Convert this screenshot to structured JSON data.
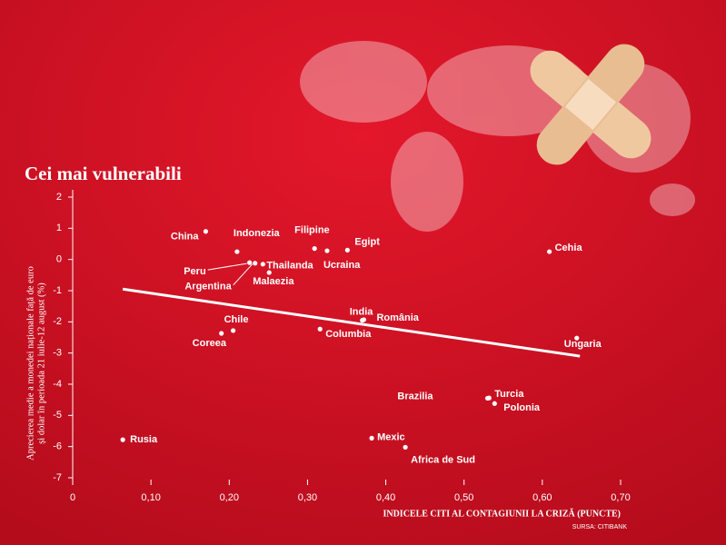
{
  "chart_data": {
    "type": "scatter",
    "title": "Cei mai vulnerabili",
    "y_label_lines": [
      "Aprecierea medie a monedei naționale față de euro",
      "și dolar în perioada 21 iulie-12 august (%)"
    ],
    "x_label": "INDICELE CITI AL CONTAGIUNII LA CRIZĂ (PUNCTE)",
    "source": "SURSA: CITIBANK",
    "points": [
      {
        "name": "China",
        "x": 0.17,
        "y": 0.9
      },
      {
        "name": "Indonezia",
        "x": 0.21,
        "y": 0.25
      },
      {
        "name": "Peru",
        "x": 0.226,
        "y": -0.1
      },
      {
        "name": "Argentina",
        "x": 0.233,
        "y": -0.12
      },
      {
        "name": "Thailanda",
        "x": 0.243,
        "y": -0.15
      },
      {
        "name": "Malaezia",
        "x": 0.251,
        "y": -0.42
      },
      {
        "name": "Filipine",
        "x": 0.309,
        "y": 0.35
      },
      {
        "name": "Ucraina",
        "x": 0.325,
        "y": 0.28
      },
      {
        "name": "Egipt",
        "x": 0.351,
        "y": 0.3
      },
      {
        "name": "Cehia",
        "x": 0.609,
        "y": 0.25
      },
      {
        "name": "India",
        "x": 0.37,
        "y": -1.95
      },
      {
        "name": "România",
        "x": 0.372,
        "y": -1.93
      },
      {
        "name": "Columbia",
        "x": 0.316,
        "y": -2.23
      },
      {
        "name": "Chile",
        "x": 0.205,
        "y": -2.28
      },
      {
        "name": "Coreea",
        "x": 0.19,
        "y": -2.37
      },
      {
        "name": "Ungaria",
        "x": 0.644,
        "y": -2.52
      },
      {
        "name": "Brazilia",
        "x": 0.53,
        "y": -4.45
      },
      {
        "name": "Turcia",
        "x": 0.532,
        "y": -4.44
      },
      {
        "name": "Polonia",
        "x": 0.539,
        "y": -4.62
      },
      {
        "name": "Rusia",
        "x": 0.064,
        "y": -5.78
      },
      {
        "name": "Mexic",
        "x": 0.382,
        "y": -5.73
      },
      {
        "name": "Africa de Sud",
        "x": 0.425,
        "y": -6.02
      }
    ],
    "trendline": {
      "x": [
        0.064,
        0.648
      ],
      "y": [
        -0.95,
        -3.1
      ]
    },
    "xlim": [
      0,
      0.7
    ],
    "ylim": [
      -7,
      2
    ],
    "xticks": [
      0,
      {
        "value": 0.1,
        "label": "0,10"
      },
      {
        "value": 0.2,
        "label": "0,20"
      },
      {
        "value": 0.3,
        "label": "0,30"
      },
      {
        "value": 0.4,
        "label": "0,40"
      },
      {
        "value": 0.5,
        "label": "0,50"
      },
      {
        "value": 0.6,
        "label": "0,60"
      },
      {
        "value": 0.7,
        "label": "0,70"
      }
    ],
    "yticks": [
      2,
      1,
      0,
      -1,
      -2,
      -3,
      -4,
      -5,
      -6,
      -7
    ]
  }
}
